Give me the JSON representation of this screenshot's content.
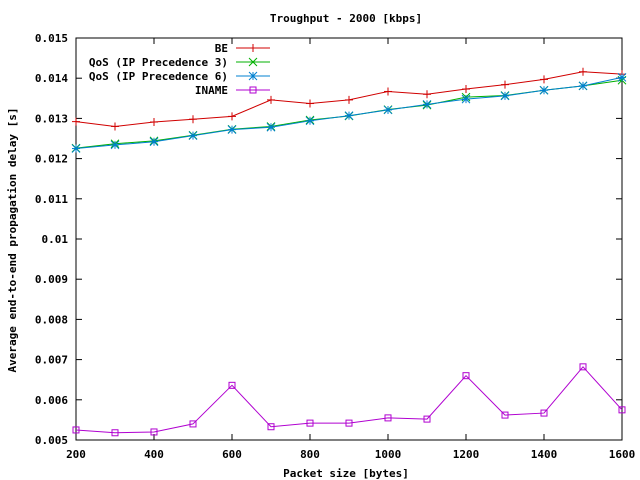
{
  "chart_data": {
    "type": "line",
    "title": "Troughput - 2000 [kbps]",
    "xlabel": "Packet size [bytes]",
    "ylabel": "Average end-to-end propagation delay [s]",
    "xlim": [
      200,
      1600
    ],
    "ylim": [
      0.005,
      0.015
    ],
    "x_ticks": [
      200,
      400,
      600,
      800,
      1000,
      1200,
      1400,
      1600
    ],
    "x_tick_labels": [
      "200",
      "400",
      "600",
      "800",
      "1000",
      "1200",
      "1400",
      "1600"
    ],
    "y_ticks": [
      0.005,
      0.006,
      0.007,
      0.008,
      0.009,
      0.01,
      0.011,
      0.012,
      0.013,
      0.014,
      0.015
    ],
    "y_tick_labels": [
      "0.005",
      "0.006",
      "0.007",
      "0.008",
      "0.009",
      "0.01",
      "0.011",
      "0.012",
      "0.013",
      "0.014",
      "0.015"
    ],
    "grid": false,
    "legend_position": "top-right",
    "x": [
      200,
      300,
      400,
      500,
      600,
      700,
      800,
      900,
      1000,
      1100,
      1200,
      1300,
      1400,
      1500,
      1600
    ],
    "series": [
      {
        "name": "BE",
        "color": "#d00000",
        "marker": "plus",
        "values": [
          0.01292,
          0.0128,
          0.01291,
          0.01298,
          0.01305,
          0.01346,
          0.01337,
          0.01346,
          0.01367,
          0.0136,
          0.01373,
          0.01384,
          0.01397,
          0.01416,
          0.0141
        ]
      },
      {
        "name": "QoS (IP Precedence 3)",
        "color": "#00b000",
        "marker": "cross",
        "values": [
          0.01226,
          0.01237,
          0.01244,
          0.01258,
          0.01273,
          0.0128,
          0.01296,
          0.01306,
          0.01322,
          0.01333,
          0.01353,
          0.01357,
          0.0137,
          0.01381,
          0.01395
        ]
      },
      {
        "name": "QoS (IP Precedence 6)",
        "color": "#0080d0",
        "marker": "star",
        "values": [
          0.01225,
          0.01234,
          0.01242,
          0.01257,
          0.01272,
          0.01278,
          0.01294,
          0.01307,
          0.01321,
          0.01335,
          0.01348,
          0.01356,
          0.0137,
          0.01381,
          0.01402
        ]
      },
      {
        "name": "INAME",
        "color": "#b000d0",
        "marker": "square",
        "values": [
          0.00525,
          0.00518,
          0.0052,
          0.0054,
          0.00636,
          0.00533,
          0.00542,
          0.00542,
          0.00555,
          0.00552,
          0.0066,
          0.00562,
          0.00567,
          0.00682,
          0.00575
        ]
      }
    ]
  }
}
